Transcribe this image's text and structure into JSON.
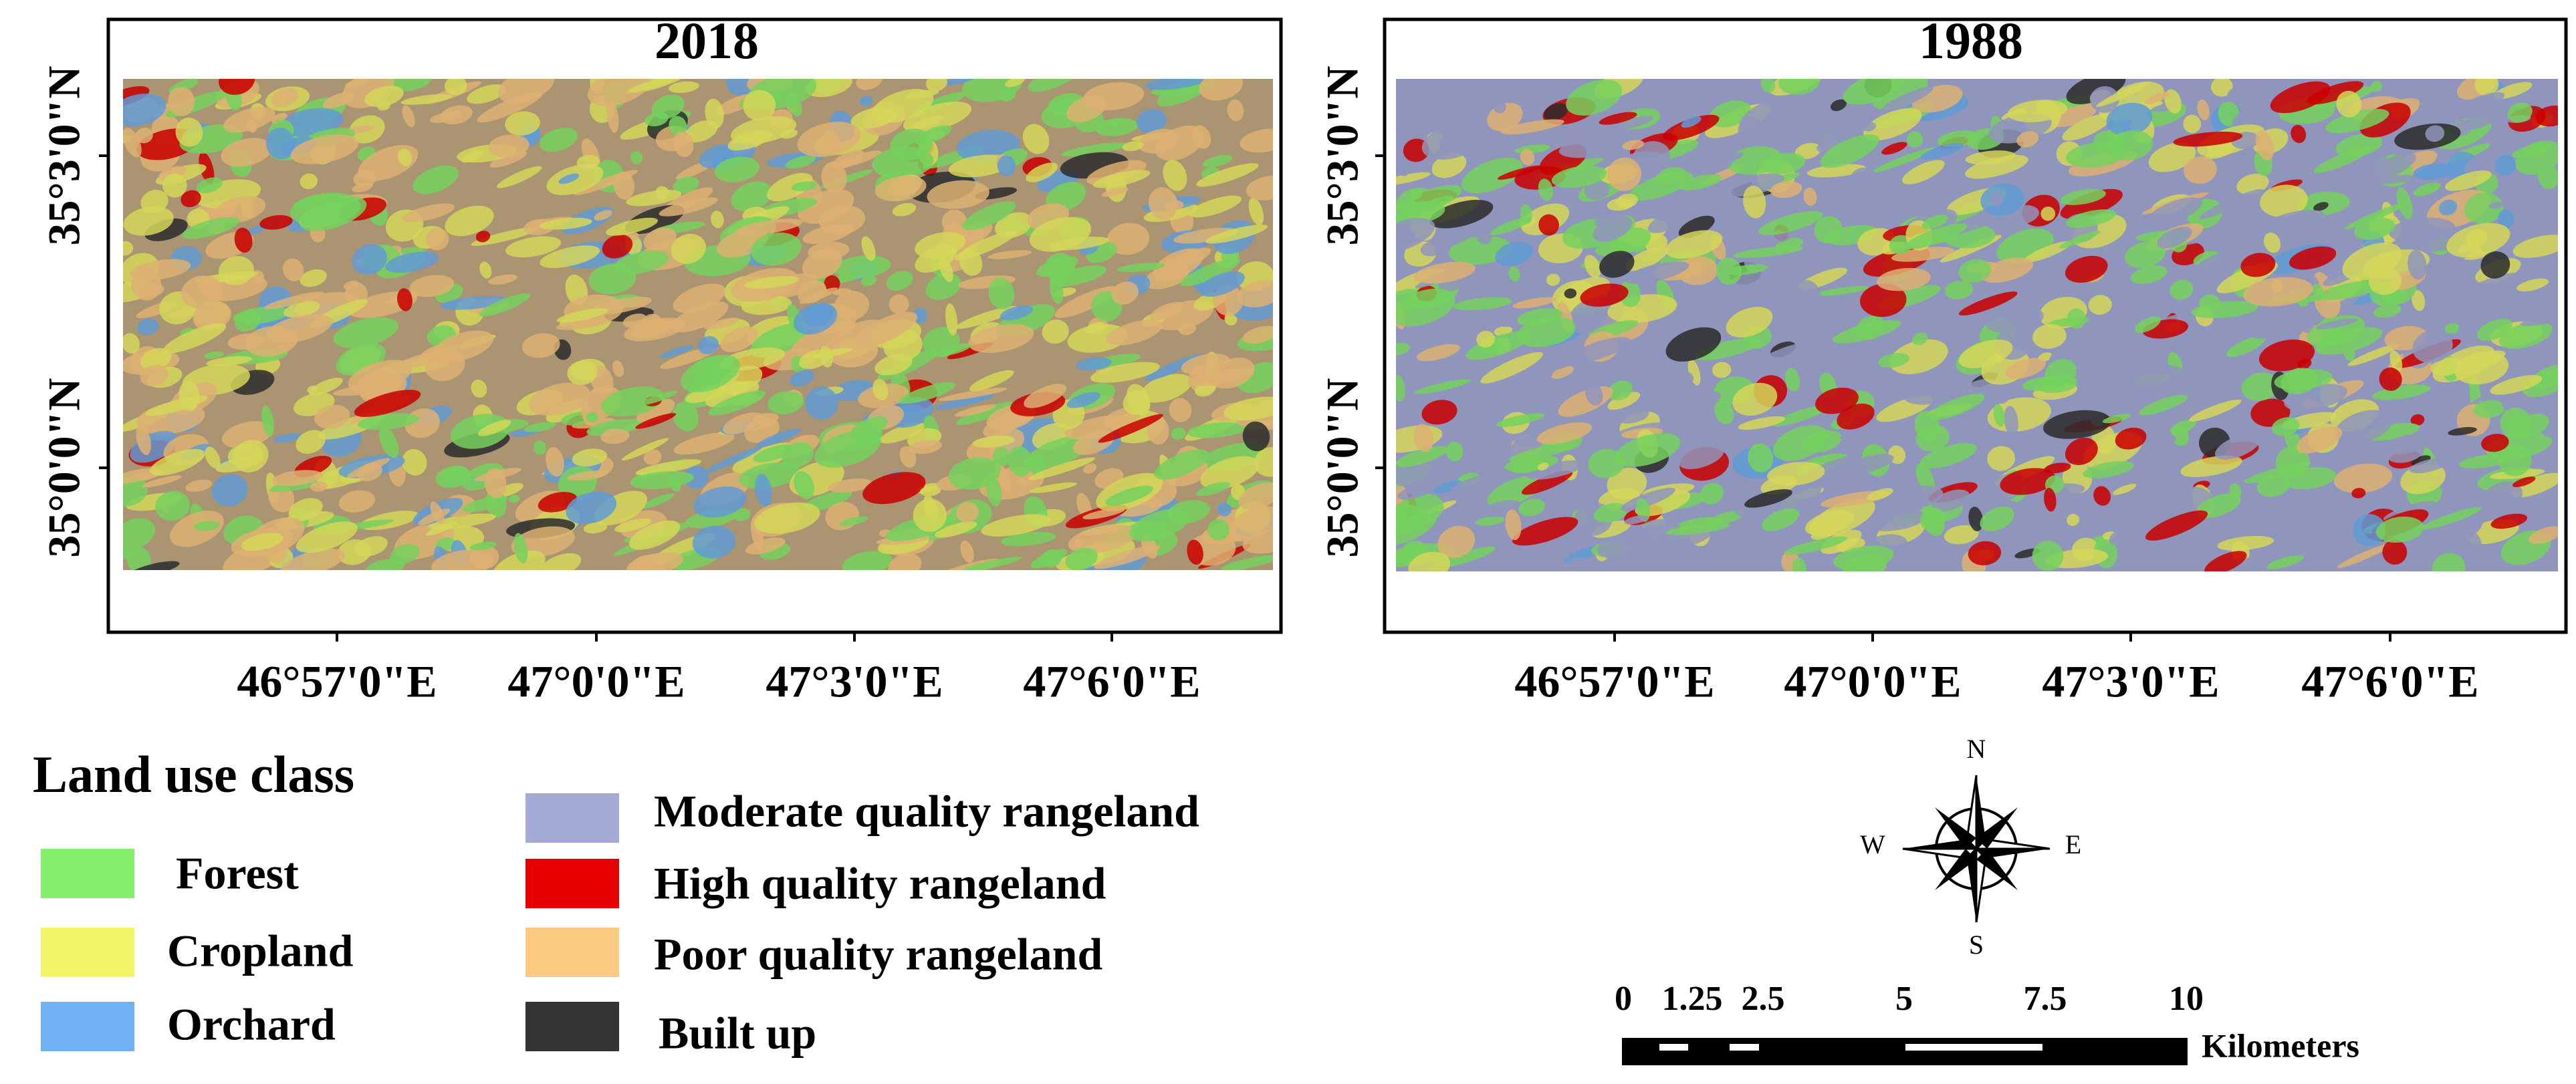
{
  "panels": [
    {
      "title": "2018",
      "lat_labels": [
        "35°3'0\"N",
        "35°0'0\"N"
      ],
      "lon_labels": [
        "46°57'0\"E",
        "47°0'0\"E",
        "47°3'0\"E",
        "47°6'0\"E"
      ]
    },
    {
      "title": "1988",
      "lat_labels": [
        "35°3'0\"N",
        "35°0'0\"N"
      ],
      "lon_labels": [
        "46°57'0\"E",
        "47°0'0\"E",
        "47°3'0\"E",
        "47°6'0\"E"
      ]
    }
  ],
  "legend": {
    "title": "Land use class",
    "items": [
      {
        "label": "Forest",
        "color": "#86ef6b"
      },
      {
        "label": "Cropland",
        "color": "#f2f566"
      },
      {
        "label": "Orchard",
        "color": "#6fb1f2"
      },
      {
        "label": "Moderate quality rangeland",
        "color": "#a4aad6"
      },
      {
        "label": "High quality rangeland",
        "color": "#e60000"
      },
      {
        "label": "Poor quality rangeland",
        "color": "#fcc983"
      },
      {
        "label": "Built up",
        "color": "#333333"
      }
    ]
  },
  "compass": {
    "n": "N",
    "s": "S",
    "w": "W",
    "e": "E"
  },
  "scale_bar": {
    "labels": [
      "0",
      "1.25",
      "2.5",
      "5",
      "7.5",
      "10"
    ],
    "unit": "Kilometers"
  }
}
